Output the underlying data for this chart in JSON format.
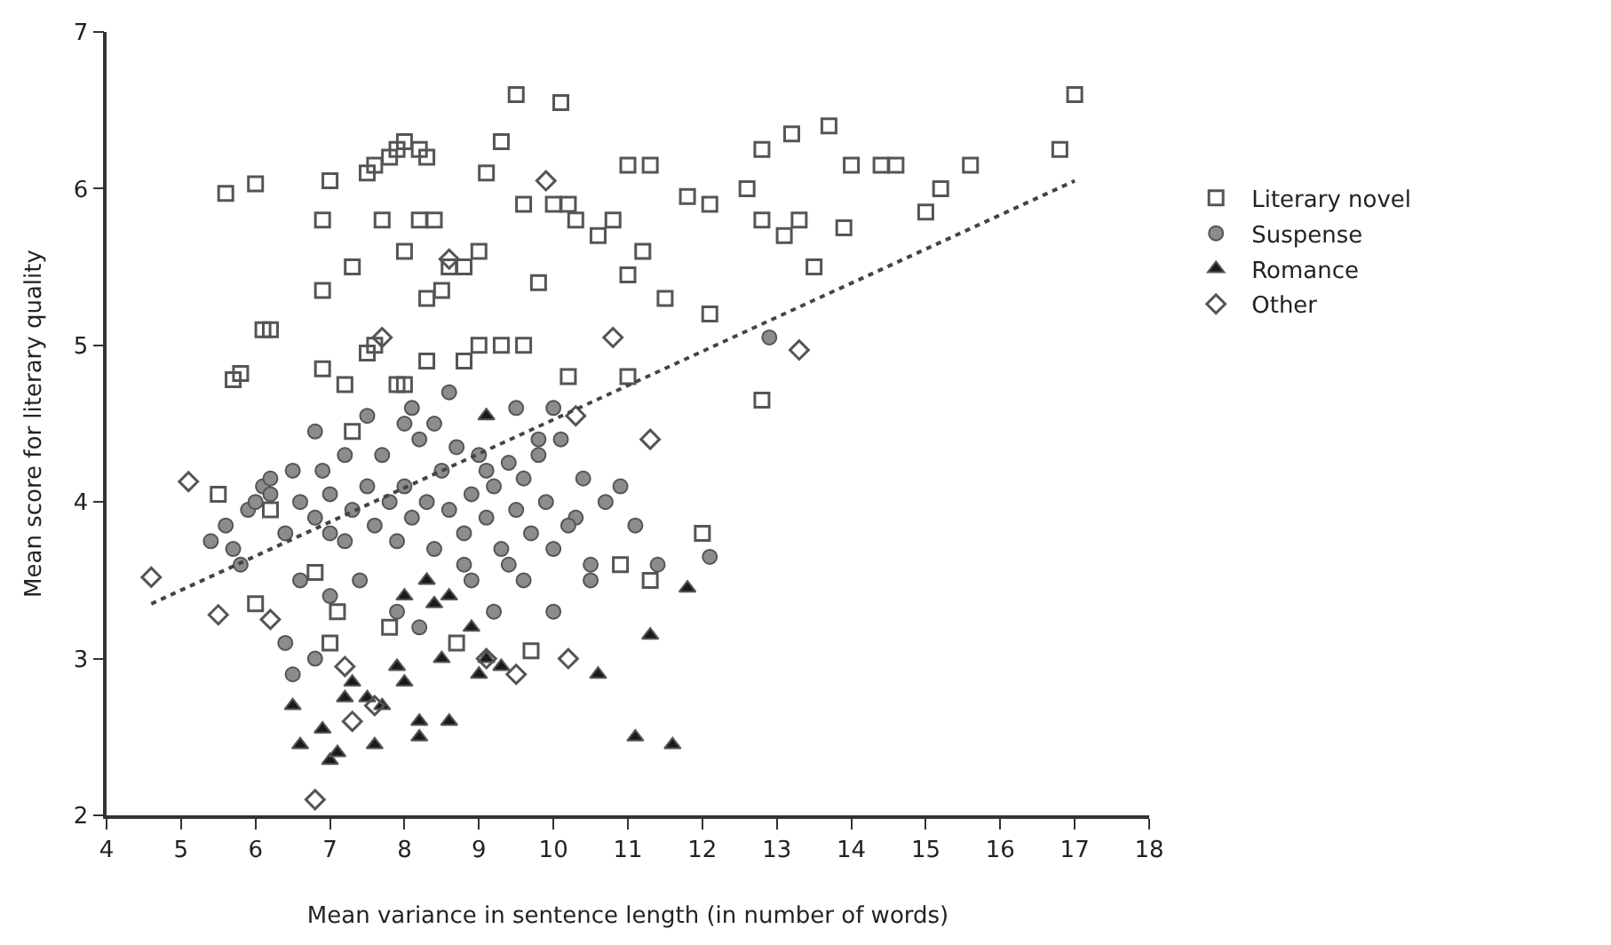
{
  "chart_data": {
    "type": "scatter",
    "xlabel": "Mean variance in sentence length (in number of words)",
    "ylabel": "Mean score for literary quality",
    "xlim": [
      4,
      18
    ],
    "xticks": [
      4,
      5,
      6,
      7,
      8,
      9,
      10,
      11,
      12,
      13,
      14,
      15,
      16,
      17,
      18
    ],
    "ylim": [
      2,
      7
    ],
    "yticks": [
      2,
      3,
      4,
      5,
      6,
      7
    ],
    "legend": "right",
    "series": [
      {
        "name": "Literary novel",
        "color": "#555555",
        "marker": "square",
        "x": [
          5.6,
          6.0,
          5.7,
          5.8,
          6.1,
          6.2,
          6.9,
          7.0,
          6.9,
          7.3,
          7.5,
          7.6,
          7.8,
          7.9,
          8.0,
          8.2,
          8.3,
          7.7,
          8.0,
          8.2,
          8.4,
          8.6,
          8.8,
          9.0,
          9.1,
          9.3,
          9.5,
          10.1,
          9.6,
          9.8,
          10.0,
          10.2,
          10.3,
          10.6,
          10.8,
          11.0,
          11.3,
          11.0,
          11.2,
          11.5,
          11.8,
          12.1,
          12.1,
          12.6,
          12.8,
          13.2,
          13.7,
          14.0,
          14.4,
          14.6,
          15.2,
          15.6,
          15.0,
          16.8,
          17.0,
          12.8,
          13.1,
          13.3,
          13.5,
          13.9,
          12.8,
          11.0,
          10.2,
          9.6,
          9.3,
          9.0,
          8.8,
          8.0,
          7.9,
          7.5,
          7.2,
          6.9,
          7.3,
          6.2,
          6.8,
          7.1,
          7.0,
          7.8,
          8.7,
          9.7,
          11.3,
          10.9,
          12.0,
          8.3,
          8.5,
          7.6,
          8.3,
          6.0,
          5.5
        ],
        "values": [
          5.97,
          6.03,
          4.78,
          4.82,
          5.1,
          5.1,
          5.8,
          6.05,
          5.35,
          5.5,
          6.1,
          6.15,
          6.2,
          6.25,
          6.3,
          6.25,
          6.2,
          5.8,
          5.6,
          5.8,
          5.8,
          5.5,
          5.5,
          5.6,
          6.1,
          6.3,
          6.6,
          6.55,
          5.9,
          5.4,
          5.9,
          5.9,
          5.8,
          5.7,
          5.8,
          6.15,
          6.15,
          5.45,
          5.6,
          5.3,
          5.95,
          5.9,
          5.2,
          6.0,
          6.25,
          6.35,
          6.4,
          6.15,
          6.15,
          6.15,
          6.0,
          6.15,
          5.85,
          6.25,
          6.6,
          5.8,
          5.7,
          5.8,
          5.5,
          5.75,
          4.65,
          4.8,
          4.8,
          5.0,
          5.0,
          5.0,
          4.9,
          4.75,
          4.75,
          4.95,
          4.75,
          4.85,
          4.45,
          3.95,
          3.55,
          3.3,
          3.1,
          3.2,
          3.1,
          3.05,
          3.5,
          3.6,
          3.8,
          5.3,
          5.35,
          5.0,
          4.9,
          3.35,
          4.05
        ]
      },
      {
        "name": "Suspense",
        "color": "#8c8c8c",
        "marker": "circle",
        "x": [
          5.4,
          5.6,
          5.7,
          5.9,
          6.0,
          6.1,
          6.2,
          6.4,
          6.5,
          6.6,
          6.8,
          6.9,
          7.0,
          7.2,
          7.3,
          7.5,
          7.6,
          7.7,
          7.8,
          7.9,
          8.0,
          8.1,
          8.2,
          8.3,
          8.4,
          8.5,
          8.6,
          8.7,
          8.8,
          8.9,
          9.0,
          9.1,
          9.2,
          9.3,
          9.4,
          9.5,
          9.6,
          9.7,
          9.8,
          9.9,
          10.0,
          10.1,
          10.3,
          10.4,
          10.5,
          10.7,
          10.9,
          11.1,
          11.4,
          12.1,
          6.6,
          6.4,
          6.5,
          6.8,
          7.0,
          7.4,
          7.9,
          8.2,
          8.9,
          9.2,
          9.6,
          10.0,
          10.5,
          10.2,
          6.8,
          7.5,
          8.1,
          8.6,
          9.5,
          9.8,
          8.0,
          7.2,
          8.4,
          10.0,
          12.9,
          9.1,
          6.2,
          5.8,
          7.0,
          8.8,
          9.4
        ],
        "values": [
          3.75,
          3.85,
          3.7,
          3.95,
          4.0,
          4.1,
          4.15,
          3.8,
          4.2,
          4.0,
          3.9,
          4.2,
          4.05,
          3.75,
          3.95,
          4.1,
          3.85,
          4.3,
          4.0,
          3.75,
          4.1,
          3.9,
          4.4,
          4.0,
          3.7,
          4.2,
          3.95,
          4.35,
          3.8,
          4.05,
          4.3,
          3.9,
          4.1,
          3.7,
          4.25,
          3.95,
          4.15,
          3.8,
          4.3,
          4.0,
          3.7,
          4.4,
          3.9,
          4.15,
          3.6,
          4.0,
          4.1,
          3.85,
          3.6,
          3.65,
          3.5,
          3.1,
          2.9,
          3.0,
          3.4,
          3.5,
          3.3,
          3.2,
          3.5,
          3.3,
          3.5,
          3.3,
          3.5,
          3.85,
          4.45,
          4.55,
          4.6,
          4.7,
          4.6,
          4.4,
          4.5,
          4.3,
          4.5,
          4.6,
          5.05,
          4.2,
          4.05,
          3.6,
          3.8,
          3.6,
          3.6
        ]
      },
      {
        "name": "Romance",
        "color": "#1a1a1a",
        "marker": "triangle",
        "x": [
          6.5,
          6.6,
          6.9,
          7.0,
          7.1,
          7.3,
          7.5,
          7.6,
          7.7,
          7.9,
          8.0,
          8.2,
          8.2,
          8.6,
          8.0,
          8.4,
          8.6,
          8.9,
          9.0,
          9.1,
          9.3,
          9.1,
          10.6,
          11.1,
          11.3,
          11.6,
          11.8,
          8.5,
          8.3,
          7.2
        ],
        "values": [
          2.7,
          2.45,
          2.55,
          2.35,
          2.4,
          2.85,
          2.75,
          2.45,
          2.7,
          2.95,
          2.85,
          2.5,
          2.6,
          2.6,
          3.4,
          3.35,
          3.4,
          3.2,
          2.9,
          3.0,
          2.95,
          4.55,
          2.9,
          2.5,
          3.15,
          2.45,
          3.45,
          3.0,
          3.5,
          2.75
        ]
      },
      {
        "name": "Other",
        "color": "#555555",
        "marker": "diamond",
        "x": [
          4.6,
          5.1,
          5.5,
          6.2,
          6.8,
          7.2,
          7.6,
          7.7,
          8.6,
          9.9,
          10.3,
          10.8,
          11.3,
          13.3,
          9.5,
          10.2,
          9.1,
          7.3
        ],
        "values": [
          3.52,
          4.13,
          3.28,
          3.25,
          2.1,
          2.95,
          2.7,
          5.05,
          5.55,
          6.05,
          4.55,
          5.05,
          4.4,
          4.97,
          2.9,
          3.0,
          3.0,
          2.6
        ]
      },
      {
        "type": "line",
        "color": "#444444",
        "marker": "none",
        "line_style": "dotted",
        "x": [
          4.6,
          17.0
        ],
        "values": [
          3.35,
          6.05
        ]
      }
    ]
  }
}
